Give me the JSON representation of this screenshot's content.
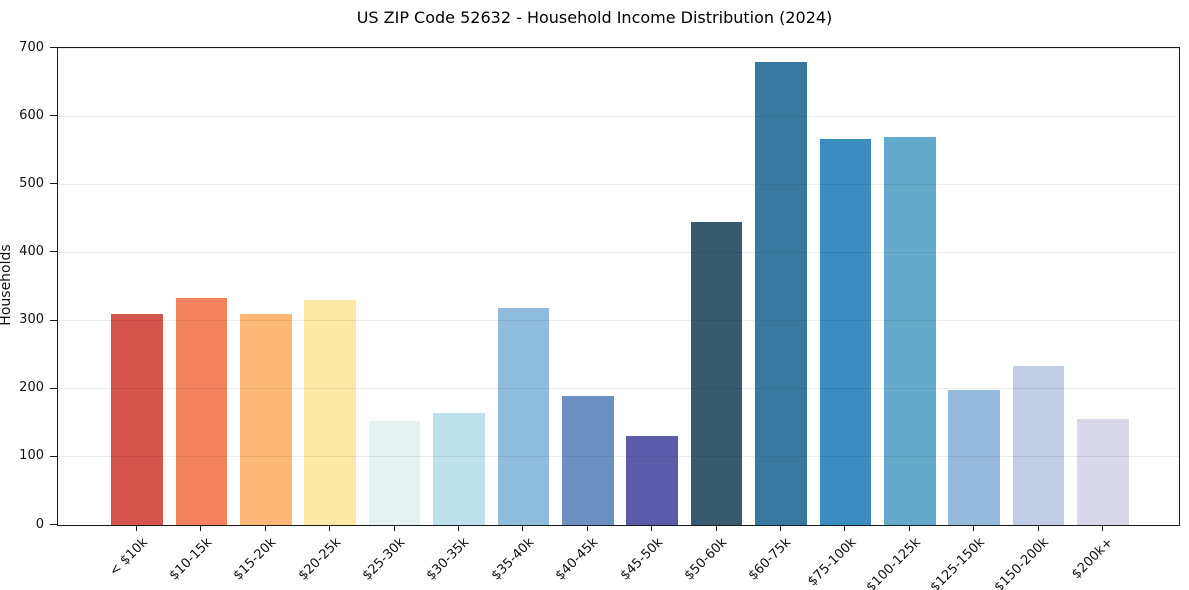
{
  "chart_data": {
    "type": "bar",
    "title": "US ZIP Code 52632 - Household Income Distribution (2024)",
    "xlabel": "",
    "ylabel": "Households",
    "categories": [
      "< $10k",
      "$10-15k",
      "$15-20k",
      "$20-25k",
      "$25-30k",
      "$30-35k",
      "$35-40k",
      "$40-45k",
      "$45-50k",
      "$50-60k",
      "$60-75k",
      "$75-100k",
      "$100-125k",
      "$125-150k",
      "$150-200k",
      "$200k+"
    ],
    "values": [
      310,
      333,
      310,
      330,
      152,
      165,
      318,
      190,
      130,
      445,
      680,
      566,
      570,
      198,
      234,
      156
    ],
    "bar_colors": [
      "#d5544e",
      "#f3825f",
      "#fbb877",
      "#fde8a5",
      "#e6f2f1",
      "#bee1ee",
      "#90bcdc",
      "#6d90c4",
      "#5c5baa",
      "#375a6e",
      "#3878a0",
      "#3a8cc0",
      "#64aacd",
      "#96badb",
      "#c2cde4",
      "#d9d8e8"
    ],
    "ylim": [
      0,
      700
    ],
    "yticks": [
      0,
      100,
      200,
      300,
      400,
      500,
      600,
      700
    ],
    "grid": "horizontal-light",
    "legend": "none",
    "axis_color": "#1a1a1a",
    "gridline_color": "#ebebeb"
  }
}
